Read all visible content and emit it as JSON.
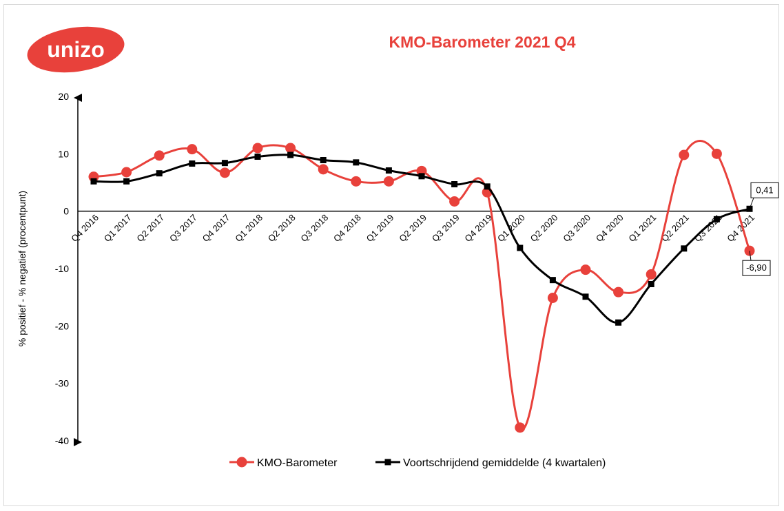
{
  "logo": {
    "text": "unizo"
  },
  "chart_data": {
    "type": "line",
    "title": "KMO-Barometer 2021 Q4",
    "ylabel": "% positief - % negatief (procentpunt)",
    "ylim": [
      -40,
      20
    ],
    "yticks": [
      20,
      10,
      0,
      -10,
      -20,
      -30,
      -40
    ],
    "categories": [
      "Q4 2016",
      "Q1 2017",
      "Q2 2017",
      "Q3 2017",
      "Q4 2017",
      "Q1 2018",
      "Q2 2018",
      "Q3 2018",
      "Q4 2018",
      "Q1 2019",
      "Q2 2019",
      "Q3 2019",
      "Q4 2019",
      "Q1 2020",
      "Q2 2020",
      "Q3 2020",
      "Q4 2020",
      "Q1 2021",
      "Q2 2021",
      "Q3 2021",
      "Q4 2021"
    ],
    "series": [
      {
        "name": "KMO-Barometer",
        "color": "#e8413b",
        "marker": "circle",
        "values": [
          6.0,
          6.8,
          9.7,
          10.8,
          6.7,
          11.0,
          11.0,
          7.3,
          5.2,
          5.2,
          7.0,
          1.7,
          3.3,
          -37.7,
          -15.1,
          -10.2,
          -14.1,
          -11.0,
          9.8,
          10.0,
          -6.9
        ]
      },
      {
        "name": "Voortschrijdend gemiddelde (4 kwartalen)",
        "color": "#000000",
        "marker": "square",
        "values": [
          5.2,
          5.2,
          6.6,
          8.3,
          8.4,
          9.5,
          9.8,
          8.9,
          8.5,
          7.1,
          6.1,
          4.7,
          4.3,
          -6.4,
          -12.0,
          -14.9,
          -19.4,
          -12.7,
          -6.5,
          -1.4,
          0.41
        ]
      }
    ],
    "callouts": [
      {
        "series": 1,
        "index": 20,
        "label": "0,41"
      },
      {
        "series": 0,
        "index": 20,
        "label": "-6,90"
      }
    ],
    "legend_position": "bottom",
    "grid": false
  }
}
